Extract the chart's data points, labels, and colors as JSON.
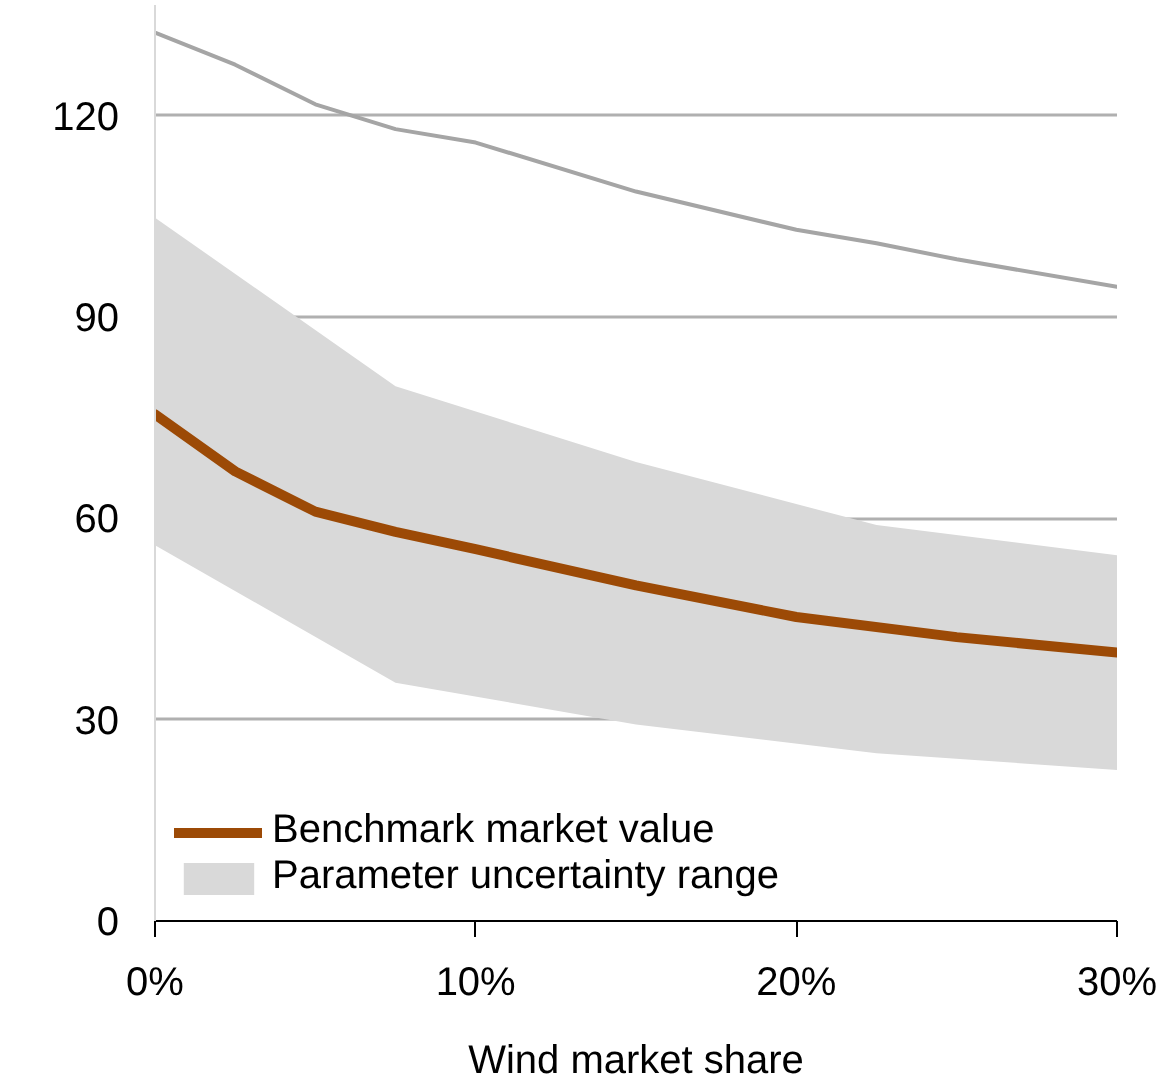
{
  "chart_data": {
    "type": "line",
    "xlabel": "Wind market share",
    "xlim": [
      0,
      30
    ],
    "ylim": [
      0,
      136.5
    ],
    "xticks": [
      {
        "value": 0,
        "label": "0%"
      },
      {
        "value": 10,
        "label": "10%"
      },
      {
        "value": 20,
        "label": "20%"
      },
      {
        "value": 30,
        "label": "30%"
      }
    ],
    "yticks": [
      0,
      30,
      60,
      90,
      120
    ],
    "grid": "y",
    "legend": "bottom left",
    "series": [
      {
        "name": "Benchmark market value",
        "color": "#9c4a06",
        "x": [
          0,
          2.5,
          5,
          7.5,
          10,
          15,
          20,
          25,
          30
        ],
        "values": [
          75.5,
          67,
          61,
          58,
          55.4,
          50,
          45.3,
          42.3,
          40
        ]
      },
      {
        "name": "Parameter uncertainty range",
        "color": "#d9d9d9",
        "x": [
          0,
          7.5,
          15,
          22.5,
          30
        ],
        "values": [
          null,
          null,
          null,
          null,
          null
        ],
        "lower": [
          56,
          35.5,
          29.3,
          25,
          22.5
        ],
        "upper": [
          104.8,
          79.7,
          68.4,
          59,
          54.5
        ]
      },
      {
        "color": "#a5a5a5",
        "x": [
          0,
          2.5,
          5,
          7.5,
          10,
          15,
          20,
          22.5,
          25,
          30
        ],
        "values": [
          132.4,
          127.6,
          121.7,
          118,
          116,
          108.7,
          103,
          101,
          98.6,
          94.5
        ]
      }
    ]
  }
}
